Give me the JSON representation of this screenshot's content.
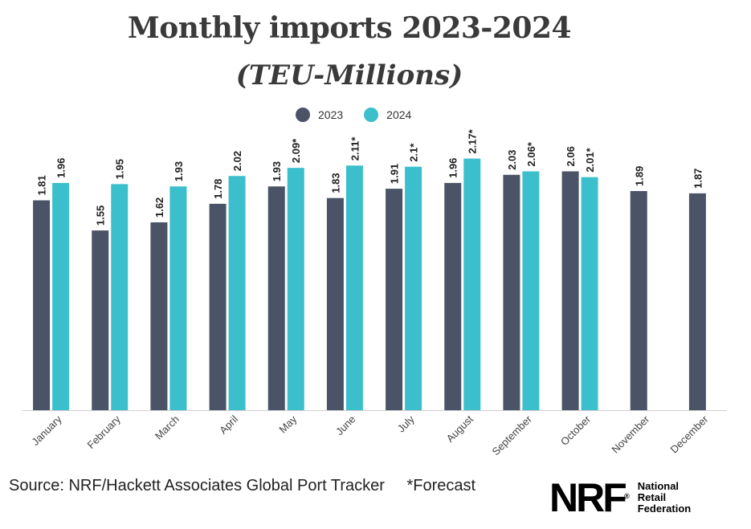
{
  "header": {
    "title": "Monthly imports 2023-2024",
    "subtitle": "(TEU-Millions)"
  },
  "legend": [
    {
      "label": "2023",
      "color": "#4a5466"
    },
    {
      "label": "2024",
      "color": "#3cbfcc"
    }
  ],
  "footer": {
    "source": "Source: NRF/Hackett Associates Global Port Tracker",
    "forecast_note": "*Forecast"
  },
  "logo": {
    "mark": "NRF",
    "registered": "®",
    "line1": "National",
    "line2": "Retail",
    "line3": "Federation"
  },
  "chart_data": {
    "type": "bar",
    "title": "Monthly imports 2023-2024",
    "subtitle": "(TEU-Millions)",
    "categories": [
      "January",
      "February",
      "March",
      "April",
      "May",
      "June",
      "July",
      "August",
      "September",
      "October",
      "November",
      "December"
    ],
    "series": [
      {
        "name": "2023",
        "color": "#4a5466",
        "values": [
          1.81,
          1.55,
          1.62,
          1.78,
          1.93,
          1.83,
          1.91,
          1.96,
          2.03,
          2.06,
          1.89,
          1.87
        ],
        "labels": [
          "1.81",
          "1.55",
          "1.62",
          "1.78",
          "1.93",
          "1.83",
          "1.91",
          "1.96",
          "2.03",
          "2.06",
          "1.89",
          "1.87"
        ]
      },
      {
        "name": "2024",
        "color": "#3cbfcc",
        "values": [
          1.96,
          1.95,
          1.93,
          2.02,
          2.09,
          2.11,
          2.1,
          2.17,
          2.06,
          2.01,
          null,
          null
        ],
        "labels": [
          "1.96",
          "1.95",
          "1.93",
          "2.02",
          "2.09*",
          "2.11*",
          "2.1*",
          "2.17*",
          "2.06*",
          "2.01*",
          "",
          ""
        ]
      }
    ],
    "ylim": [
      0,
      2.25
    ],
    "legend_position": "top-center",
    "grid": false
  }
}
